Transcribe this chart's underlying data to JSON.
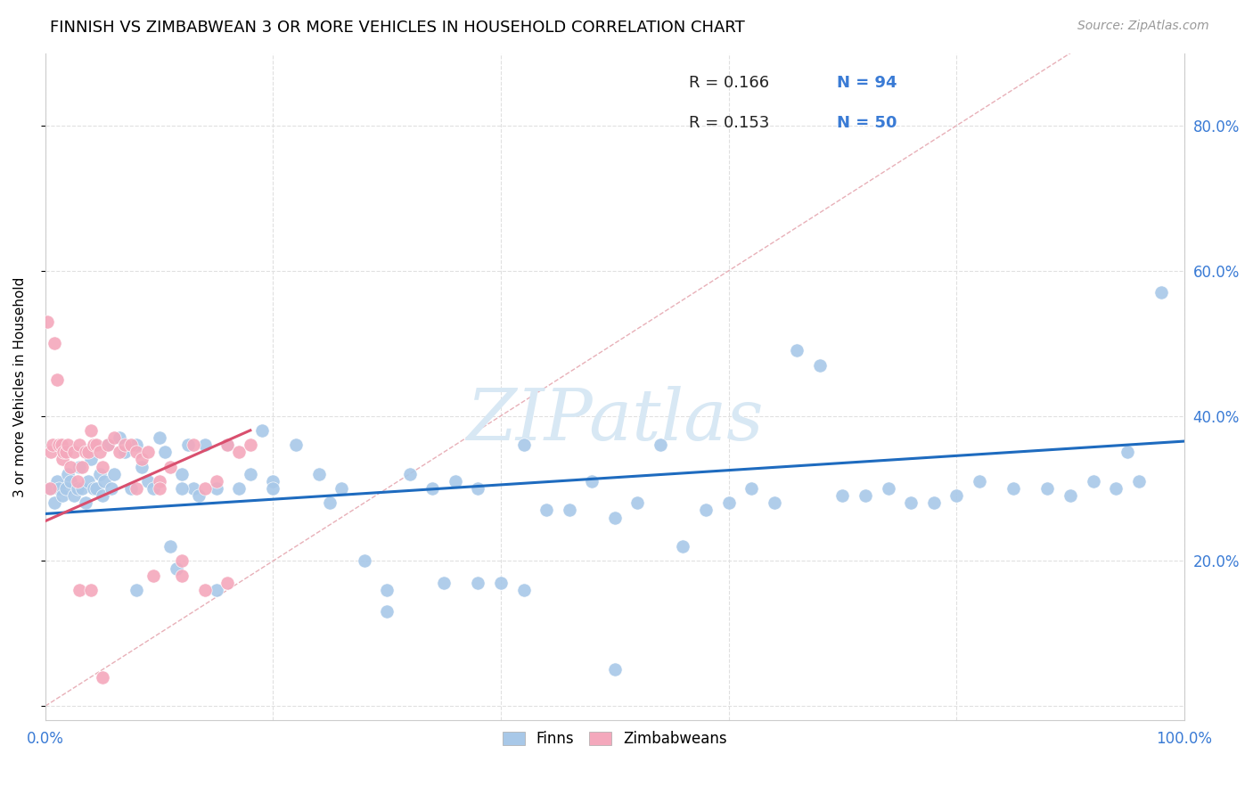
{
  "title": "FINNISH VS ZIMBABWEAN 3 OR MORE VEHICLES IN HOUSEHOLD CORRELATION CHART",
  "source": "Source: ZipAtlas.com",
  "ylabel": "3 or more Vehicles in Household",
  "xlim": [
    0,
    1.0
  ],
  "ylim": [
    -0.02,
    0.9
  ],
  "xticks": [
    0.0,
    0.2,
    0.4,
    0.6,
    0.8,
    1.0
  ],
  "yticks": [
    0.0,
    0.2,
    0.4,
    0.6,
    0.8
  ],
  "xticklabels": [
    "0.0%",
    "",
    "",
    "",
    "",
    "100.0%"
  ],
  "right_yticklabels": [
    "80.0%",
    "60.0%",
    "40.0%",
    "20.0%"
  ],
  "right_yticks": [
    0.8,
    0.6,
    0.4,
    0.2
  ],
  "legend_r_finns": "R = 0.166",
  "legend_n_finns": "N = 94",
  "legend_r_zimb": "R = 0.153",
  "legend_n_zimb": "N = 50",
  "color_finns": "#a8c8e8",
  "color_zimb": "#f4a8bc",
  "color_line_finns": "#1e6bbf",
  "color_line_zimb": "#d94f6e",
  "color_diagonal": "#e8b0b8",
  "color_grid": "#e0e0e0",
  "color_ticks": "#3a7bd5",
  "watermark_color": "#d8e8f4",
  "finns_x": [
    0.005,
    0.008,
    0.01,
    0.012,
    0.015,
    0.018,
    0.02,
    0.022,
    0.025,
    0.028,
    0.03,
    0.032,
    0.035,
    0.038,
    0.04,
    0.042,
    0.045,
    0.048,
    0.05,
    0.052,
    0.055,
    0.058,
    0.06,
    0.065,
    0.07,
    0.075,
    0.08,
    0.085,
    0.09,
    0.095,
    0.1,
    0.105,
    0.11,
    0.115,
    0.12,
    0.125,
    0.13,
    0.135,
    0.14,
    0.15,
    0.16,
    0.17,
    0.18,
    0.19,
    0.2,
    0.22,
    0.24,
    0.26,
    0.28,
    0.3,
    0.32,
    0.34,
    0.36,
    0.38,
    0.4,
    0.42,
    0.44,
    0.46,
    0.48,
    0.5,
    0.52,
    0.54,
    0.56,
    0.58,
    0.6,
    0.62,
    0.64,
    0.66,
    0.68,
    0.7,
    0.72,
    0.74,
    0.76,
    0.78,
    0.8,
    0.82,
    0.85,
    0.88,
    0.9,
    0.92,
    0.94,
    0.96,
    0.98,
    0.5,
    0.3,
    0.15,
    0.08,
    0.42,
    0.35,
    0.25,
    0.38,
    0.2,
    0.12,
    0.95
  ],
  "finns_y": [
    0.3,
    0.28,
    0.31,
    0.3,
    0.29,
    0.3,
    0.32,
    0.31,
    0.29,
    0.3,
    0.33,
    0.3,
    0.28,
    0.31,
    0.34,
    0.3,
    0.3,
    0.32,
    0.29,
    0.31,
    0.36,
    0.3,
    0.32,
    0.37,
    0.35,
    0.3,
    0.36,
    0.33,
    0.31,
    0.3,
    0.37,
    0.35,
    0.22,
    0.19,
    0.32,
    0.36,
    0.3,
    0.29,
    0.36,
    0.3,
    0.36,
    0.3,
    0.32,
    0.38,
    0.31,
    0.36,
    0.32,
    0.3,
    0.2,
    0.13,
    0.32,
    0.3,
    0.31,
    0.17,
    0.17,
    0.36,
    0.27,
    0.27,
    0.31,
    0.26,
    0.28,
    0.36,
    0.22,
    0.27,
    0.28,
    0.3,
    0.28,
    0.49,
    0.47,
    0.29,
    0.29,
    0.3,
    0.28,
    0.28,
    0.29,
    0.31,
    0.3,
    0.3,
    0.29,
    0.31,
    0.3,
    0.31,
    0.57,
    0.05,
    0.16,
    0.16,
    0.16,
    0.16,
    0.17,
    0.28,
    0.3,
    0.3,
    0.3,
    0.35
  ],
  "zimb_x": [
    0.002,
    0.004,
    0.005,
    0.006,
    0.008,
    0.01,
    0.012,
    0.014,
    0.015,
    0.016,
    0.018,
    0.02,
    0.022,
    0.025,
    0.028,
    0.03,
    0.032,
    0.035,
    0.038,
    0.04,
    0.042,
    0.045,
    0.048,
    0.05,
    0.055,
    0.06,
    0.065,
    0.07,
    0.075,
    0.08,
    0.085,
    0.09,
    0.095,
    0.1,
    0.11,
    0.12,
    0.13,
    0.14,
    0.15,
    0.16,
    0.17,
    0.18,
    0.12,
    0.14,
    0.16,
    0.03,
    0.04,
    0.05,
    0.08,
    0.1
  ],
  "zimb_y": [
    0.53,
    0.3,
    0.35,
    0.36,
    0.5,
    0.45,
    0.36,
    0.36,
    0.34,
    0.35,
    0.35,
    0.36,
    0.33,
    0.35,
    0.31,
    0.36,
    0.33,
    0.35,
    0.35,
    0.38,
    0.36,
    0.36,
    0.35,
    0.33,
    0.36,
    0.37,
    0.35,
    0.36,
    0.36,
    0.35,
    0.34,
    0.35,
    0.18,
    0.31,
    0.33,
    0.18,
    0.36,
    0.3,
    0.31,
    0.36,
    0.35,
    0.36,
    0.2,
    0.16,
    0.17,
    0.16,
    0.16,
    0.04,
    0.3,
    0.3
  ],
  "finns_line_x": [
    0.0,
    1.0
  ],
  "finns_line_y": [
    0.265,
    0.365
  ],
  "zimb_line_x": [
    0.0,
    0.18
  ],
  "zimb_line_y": [
    0.255,
    0.38
  ]
}
